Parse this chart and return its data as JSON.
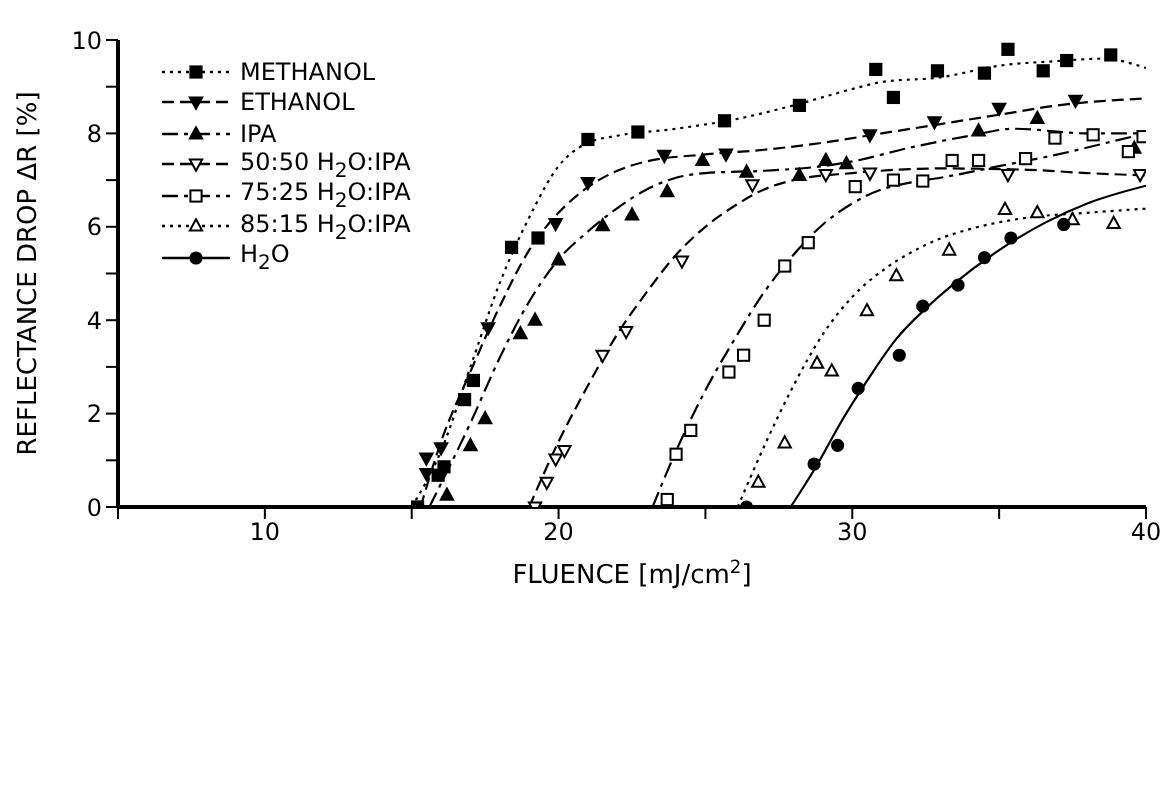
{
  "chart_data": {
    "type": "scatter",
    "xlabel": "FLUENCE [mJ/cm$^{2}$]",
    "ylabel": "REFLECTANCE DROP ΔR [%]",
    "xlim": [
      5,
      40
    ],
    "xticks": [
      {
        "value": 5,
        "label": null
      },
      10,
      {
        "value": 15,
        "label": null
      },
      20,
      {
        "value": 25,
        "label": null
      },
      30,
      {
        "value": 35,
        "label": null
      },
      40
    ],
    "ylim": [
      0,
      10
    ],
    "yticks": [
      0,
      {
        "value": 1,
        "label": null
      },
      2,
      {
        "value": 3,
        "label": null
      },
      4,
      {
        "value": 5,
        "label": null
      },
      6,
      {
        "value": 7,
        "label": null
      },
      8,
      {
        "value": 9,
        "label": null
      },
      10
    ],
    "grid": false,
    "legend": "top left",
    "series": [
      {
        "name": "METHANOL",
        "type": "scatter",
        "marker": "square",
        "color": "#000000",
        "x": [
          15.2,
          15.9,
          16.1,
          16.8,
          17.1,
          18.4,
          19.3,
          21.0,
          22.7,
          25.65,
          28.2,
          30.8,
          31.4,
          32.9,
          34.5,
          35.3,
          36.5,
          37.3,
          38.8
        ],
        "values": [
          0,
          0.68,
          0.86,
          2.3,
          2.71,
          5.56,
          5.76,
          7.87,
          8.03,
          8.27,
          8.6,
          9.37,
          8.77,
          9.34,
          9.29,
          9.8,
          9.34,
          9.56,
          9.68
        ]
      },
      {
        "type": "line",
        "line_style": "dotted",
        "color": "#000000",
        "x": [
          15.0,
          16,
          17,
          18,
          19,
          20,
          21,
          22,
          24,
          26,
          28,
          30,
          31,
          33,
          35,
          37,
          38.5,
          40
        ],
        "values": [
          0,
          1.2,
          3.0,
          4.8,
          6.2,
          7.3,
          7.8,
          7.95,
          8.1,
          8.3,
          8.6,
          8.95,
          9.1,
          9.2,
          9.45,
          9.55,
          9.6,
          9.4
        ]
      },
      {
        "name": "ETHANOL",
        "type": "scatter",
        "marker": "triangle-down",
        "color": "#000000",
        "x": [
          15.5,
          15.5,
          16.0,
          17.6,
          19.9,
          21.0,
          23.6,
          25.7,
          30.6,
          32.8,
          35.0,
          37.6
        ],
        "values": [
          0.72,
          1.05,
          1.27,
          3.84,
          6.07,
          6.95,
          7.53,
          7.56,
          7.97,
          8.25,
          8.54,
          8.71
        ]
      },
      {
        "type": "line",
        "line_style": "dashed",
        "color": "#000000",
        "x": [
          15.3,
          16,
          17,
          18,
          19,
          20,
          21,
          22,
          23,
          25,
          27,
          29,
          31,
          33,
          35,
          37,
          40
        ],
        "values": [
          0,
          1.4,
          2.9,
          4.3,
          5.5,
          6.3,
          6.85,
          7.2,
          7.4,
          7.55,
          7.65,
          7.8,
          8.0,
          8.2,
          8.4,
          8.6,
          8.75
        ]
      },
      {
        "name": "IPA",
        "type": "scatter",
        "marker": "triangle",
        "color": "#000000",
        "x": [
          16.2,
          17.0,
          17.5,
          18.7,
          19.2,
          20.0,
          21.5,
          22.5,
          23.7,
          24.9,
          26.4,
          28.2,
          29.1,
          29.8,
          34.3,
          36.3,
          39.6
        ],
        "values": [
          0.25,
          1.31,
          1.89,
          3.71,
          4.0,
          5.29,
          6.02,
          6.25,
          6.75,
          7.42,
          7.17,
          7.1,
          7.42,
          7.35,
          8.05,
          8.32,
          7.68
        ]
      },
      {
        "type": "line",
        "line_style": "dashdot",
        "color": "#000000",
        "x": [
          15.6,
          17,
          18,
          19,
          20,
          21,
          22,
          23,
          24,
          25,
          27,
          29,
          30,
          32,
          34,
          35.5,
          38,
          40
        ],
        "values": [
          0,
          1.8,
          3.2,
          4.4,
          5.3,
          5.9,
          6.4,
          6.8,
          7.05,
          7.15,
          7.2,
          7.3,
          7.4,
          7.7,
          7.95,
          8.1,
          8.0,
          8.0
        ]
      },
      {
        "name": "50:50 H$_{2}$O:IPA",
        "type": "scatter",
        "marker": "triangle-down-open",
        "color": "#000000",
        "x": [
          19.2,
          19.6,
          19.9,
          20.2,
          21.5,
          22.3,
          24.2,
          26.6,
          29.1,
          30.6,
          35.3,
          39.8
        ],
        "values": [
          0,
          0.53,
          1.03,
          1.21,
          3.25,
          3.76,
          5.27,
          6.9,
          7.12,
          7.15,
          7.12,
          7.12
        ]
      },
      {
        "type": "line",
        "line_style": "dashed",
        "color": "#000000",
        "x": [
          19,
          20,
          21,
          22,
          23,
          24,
          25,
          26,
          27,
          28,
          30,
          33,
          36,
          38,
          40
        ],
        "values": [
          0,
          1.4,
          2.6,
          3.7,
          4.6,
          5.4,
          6.0,
          6.45,
          6.8,
          7.0,
          7.15,
          7.25,
          7.22,
          7.15,
          7.1
        ]
      },
      {
        "name": "75:25 H$_{2}$O:IPA",
        "type": "scatter",
        "marker": "square-open",
        "color": "#000000",
        "x": [
          23.7,
          24.0,
          24.5,
          25.8,
          26.3,
          27.0,
          27.7,
          28.5,
          30.1,
          31.4,
          32.4,
          33.4,
          34.3,
          35.9,
          36.9,
          38.2,
          39.4,
          39.9
        ],
        "values": [
          0.16,
          1.13,
          1.64,
          2.89,
          3.25,
          4.0,
          5.16,
          5.66,
          6.86,
          7.0,
          6.98,
          7.42,
          7.42,
          7.46,
          7.9,
          7.97,
          7.61,
          7.93
        ]
      },
      {
        "type": "line",
        "line_style": "dashdot",
        "color": "#000000",
        "x": [
          23.2,
          24,
          25,
          26,
          27,
          28,
          29,
          30,
          31,
          32,
          33,
          35,
          37,
          39,
          40
        ],
        "values": [
          0,
          1.2,
          2.5,
          3.6,
          4.6,
          5.4,
          6.05,
          6.5,
          6.8,
          6.95,
          7.05,
          7.3,
          7.55,
          7.85,
          8.0
        ]
      },
      {
        "name": "85:15 H$_{2}$O:IPA",
        "type": "scatter",
        "marker": "triangle-open",
        "color": "#000000",
        "x": [
          26.8,
          27.7,
          28.8,
          29.3,
          30.5,
          31.5,
          33.3,
          35.2,
          36.3,
          37.5,
          38.9
        ],
        "values": [
          0.53,
          1.37,
          3.08,
          2.91,
          4.2,
          4.95,
          5.5,
          6.37,
          6.3,
          6.15,
          6.07
        ]
      },
      {
        "type": "line",
        "line_style": "dotted",
        "color": "#000000",
        "x": [
          26.1,
          27,
          28,
          29,
          30,
          31,
          32,
          33,
          34,
          36,
          38,
          40
        ],
        "values": [
          0,
          1.3,
          2.6,
          3.7,
          4.5,
          5.05,
          5.45,
          5.75,
          5.95,
          6.2,
          6.3,
          6.39
        ]
      },
      {
        "name": "H$_{2}$O",
        "type": "scatter",
        "marker": "circle",
        "color": "#000000",
        "x": [
          26.4,
          28.7,
          29.5,
          30.2,
          31.6,
          32.4,
          33.6,
          34.5,
          35.4,
          37.2
        ],
        "values": [
          0,
          0.92,
          1.32,
          2.54,
          3.25,
          4.3,
          4.75,
          5.34,
          5.76,
          6.05
        ]
      },
      {
        "type": "line",
        "line_style": "solid",
        "color": "#000000",
        "x": [
          27.9,
          28.8,
          29.6,
          30.5,
          31.5,
          32.5,
          33.5,
          35,
          36.6,
          38,
          40
        ],
        "values": [
          0,
          0.9,
          1.8,
          2.7,
          3.6,
          4.25,
          4.8,
          5.5,
          6.1,
          6.5,
          6.88
        ]
      }
    ]
  }
}
